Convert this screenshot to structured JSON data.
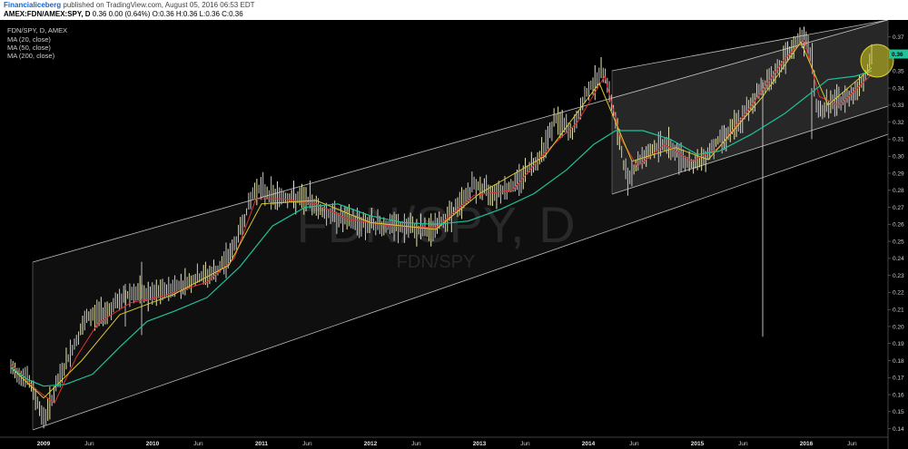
{
  "header": {
    "publisher": "Financialiceberg",
    "published_text": "published on TradingView.com, August 05, 2016 06:53 EDT",
    "symbol_line": "AMEX:FDN/AMEX:SPY, D",
    "price_change": "0.36 0.00 (0.64%)",
    "ohlc": "O:0.36 H:0.36 L:0.36 C:0.36"
  },
  "chart_data": {
    "type": "line",
    "title": "FDN/SPY, D, AMEX",
    "watermark": "FDN/SPY, D",
    "watermark_sub": "FDN/SPY",
    "legend": [
      "MA (20, close)",
      "MA (50, close)",
      "MA (200, close)"
    ],
    "ylim": [
      0.135,
      0.38
    ],
    "y_ticks": [
      "0.37",
      "0.36",
      "0.35",
      "0.34",
      "0.33",
      "0.32",
      "0.31",
      "0.30",
      "0.29",
      "0.28",
      "0.27",
      "0.26",
      "0.25",
      "0.24",
      "0.23",
      "0.22",
      "0.21",
      "0.20",
      "0.19",
      "0.18",
      "0.17",
      "0.16",
      "0.15",
      "0.14"
    ],
    "last_value_label": "0.36",
    "x_ticks": [
      {
        "label": "2009",
        "year": true
      },
      {
        "label": "Jun",
        "year": false
      },
      {
        "label": "2010",
        "year": true
      },
      {
        "label": "Jun",
        "year": false
      },
      {
        "label": "2011",
        "year": true
      },
      {
        "label": "Jun",
        "year": false
      },
      {
        "label": "2012",
        "year": true
      },
      {
        "label": "Jun",
        "year": false
      },
      {
        "label": "2013",
        "year": true
      },
      {
        "label": "Jun",
        "year": false
      },
      {
        "label": "2014",
        "year": true
      },
      {
        "label": "Jun",
        "year": false
      },
      {
        "label": "2015",
        "year": true
      },
      {
        "label": "Jun",
        "year": false
      },
      {
        "label": "2016",
        "year": true
      },
      {
        "label": "Jun",
        "year": false
      }
    ],
    "price_points": [
      [
        2008.7,
        0.175
      ],
      [
        2008.85,
        0.17
      ],
      [
        2008.95,
        0.155
      ],
      [
        2009.0,
        0.145
      ],
      [
        2009.15,
        0.17
      ],
      [
        2009.25,
        0.185
      ],
      [
        2009.4,
        0.205
      ],
      [
        2009.6,
        0.21
      ],
      [
        2009.8,
        0.22
      ],
      [
        2010.0,
        0.218
      ],
      [
        2010.2,
        0.223
      ],
      [
        2010.4,
        0.228
      ],
      [
        2010.6,
        0.232
      ],
      [
        2010.75,
        0.247
      ],
      [
        2010.9,
        0.274
      ],
      [
        2010.95,
        0.282
      ],
      [
        2011.1,
        0.277
      ],
      [
        2011.3,
        0.275
      ],
      [
        2011.45,
        0.274
      ],
      [
        2011.55,
        0.268
      ],
      [
        2011.75,
        0.263
      ],
      [
        2012.0,
        0.26
      ],
      [
        2012.3,
        0.258
      ],
      [
        2012.55,
        0.256
      ],
      [
        2012.8,
        0.27
      ],
      [
        2012.95,
        0.283
      ],
      [
        2013.1,
        0.279
      ],
      [
        2013.3,
        0.282
      ],
      [
        2013.55,
        0.3
      ],
      [
        2013.7,
        0.322
      ],
      [
        2013.85,
        0.313
      ],
      [
        2014.0,
        0.34
      ],
      [
        2014.15,
        0.35
      ],
      [
        2014.25,
        0.32
      ],
      [
        2014.35,
        0.287
      ],
      [
        2014.5,
        0.3
      ],
      [
        2014.7,
        0.308
      ],
      [
        2014.9,
        0.297
      ],
      [
        2015.0,
        0.295
      ],
      [
        2015.2,
        0.31
      ],
      [
        2015.4,
        0.32
      ],
      [
        2015.55,
        0.337
      ],
      [
        2015.7,
        0.348
      ],
      [
        2015.85,
        0.36
      ],
      [
        2015.95,
        0.371
      ],
      [
        2016.05,
        0.36
      ],
      [
        2016.1,
        0.325
      ],
      [
        2016.2,
        0.33
      ],
      [
        2016.35,
        0.333
      ],
      [
        2016.5,
        0.342
      ],
      [
        2016.6,
        0.357
      ]
    ],
    "series": [
      {
        "name": "MA (20, close)",
        "color": "#e03030",
        "points": [
          [
            2008.7,
            0.178
          ],
          [
            2008.95,
            0.162
          ],
          [
            2009.1,
            0.155
          ],
          [
            2009.3,
            0.182
          ],
          [
            2009.5,
            0.202
          ],
          [
            2009.8,
            0.214
          ],
          [
            2010.1,
            0.218
          ],
          [
            2010.5,
            0.226
          ],
          [
            2010.75,
            0.24
          ],
          [
            2010.95,
            0.275
          ],
          [
            2011.2,
            0.275
          ],
          [
            2011.5,
            0.272
          ],
          [
            2011.8,
            0.263
          ],
          [
            2012.2,
            0.259
          ],
          [
            2012.6,
            0.258
          ],
          [
            2012.95,
            0.277
          ],
          [
            2013.3,
            0.28
          ],
          [
            2013.6,
            0.302
          ],
          [
            2013.9,
            0.32
          ],
          [
            2014.15,
            0.347
          ],
          [
            2014.3,
            0.31
          ],
          [
            2014.45,
            0.294
          ],
          [
            2014.7,
            0.307
          ],
          [
            2014.95,
            0.297
          ],
          [
            2015.2,
            0.305
          ],
          [
            2015.5,
            0.33
          ],
          [
            2015.8,
            0.357
          ],
          [
            2015.98,
            0.368
          ],
          [
            2016.12,
            0.335
          ],
          [
            2016.3,
            0.33
          ],
          [
            2016.6,
            0.348
          ]
        ]
      },
      {
        "name": "MA (50, close)",
        "color": "#d8cc30",
        "points": [
          [
            2008.7,
            0.176
          ],
          [
            2009.0,
            0.158
          ],
          [
            2009.35,
            0.18
          ],
          [
            2009.7,
            0.207
          ],
          [
            2010.2,
            0.219
          ],
          [
            2010.7,
            0.236
          ],
          [
            2011.0,
            0.272
          ],
          [
            2011.5,
            0.274
          ],
          [
            2012.0,
            0.261
          ],
          [
            2012.6,
            0.257
          ],
          [
            2013.0,
            0.278
          ],
          [
            2013.6,
            0.3
          ],
          [
            2014.1,
            0.343
          ],
          [
            2014.4,
            0.297
          ],
          [
            2014.8,
            0.305
          ],
          [
            2015.1,
            0.298
          ],
          [
            2015.6,
            0.335
          ],
          [
            2015.95,
            0.367
          ],
          [
            2016.2,
            0.33
          ],
          [
            2016.6,
            0.352
          ]
        ]
      },
      {
        "name": "MA (200, close)",
        "color": "#1ec39b",
        "points": [
          [
            2008.7,
            0.176
          ],
          [
            2008.85,
            0.169
          ],
          [
            2009.0,
            0.165
          ],
          [
            2009.2,
            0.166
          ],
          [
            2009.45,
            0.172
          ],
          [
            2009.7,
            0.188
          ],
          [
            2009.95,
            0.203
          ],
          [
            2010.2,
            0.209
          ],
          [
            2010.5,
            0.217
          ],
          [
            2010.8,
            0.235
          ],
          [
            2011.1,
            0.259
          ],
          [
            2011.4,
            0.27
          ],
          [
            2011.7,
            0.272
          ],
          [
            2012.0,
            0.265
          ],
          [
            2012.3,
            0.261
          ],
          [
            2012.6,
            0.26
          ],
          [
            2012.9,
            0.262
          ],
          [
            2013.2,
            0.269
          ],
          [
            2013.5,
            0.278
          ],
          [
            2013.8,
            0.292
          ],
          [
            2014.05,
            0.307
          ],
          [
            2014.25,
            0.315
          ],
          [
            2014.5,
            0.315
          ],
          [
            2014.75,
            0.31
          ],
          [
            2015.0,
            0.301
          ],
          [
            2015.2,
            0.303
          ],
          [
            2015.5,
            0.313
          ],
          [
            2015.8,
            0.325
          ],
          [
            2016.0,
            0.335
          ],
          [
            2016.2,
            0.345
          ],
          [
            2016.45,
            0.347
          ],
          [
            2016.6,
            0.35
          ]
        ]
      }
    ]
  }
}
